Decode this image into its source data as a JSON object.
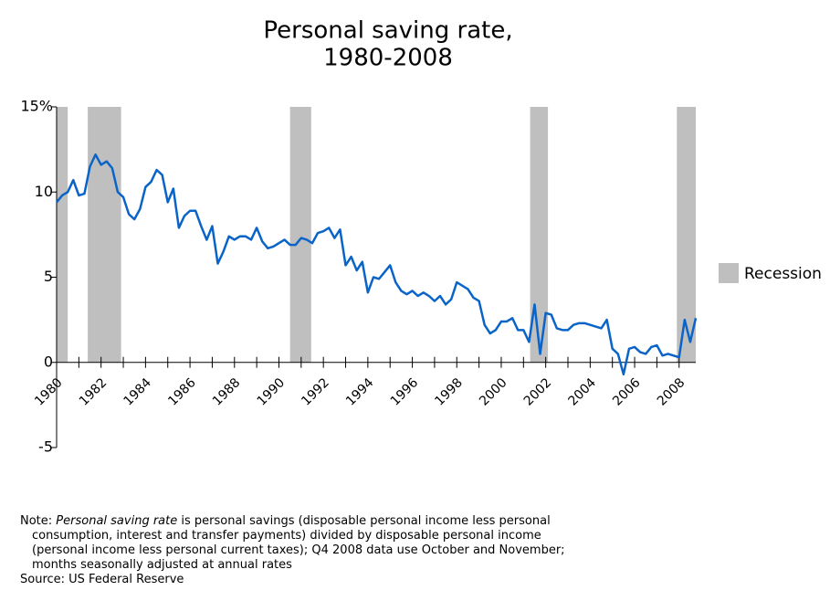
{
  "chart_data": {
    "type": "line",
    "title": [
      "Personal saving rate,",
      "1980-2008"
    ],
    "x": [
      1980,
      1980.25,
      1980.5,
      1980.75,
      1981,
      1981.25,
      1981.5,
      1981.75,
      1982,
      1982.25,
      1982.5,
      1982.75,
      1983,
      1983.25,
      1983.5,
      1983.75,
      1984,
      1984.25,
      1984.5,
      1984.75,
      1985,
      1985.25,
      1985.5,
      1985.75,
      1986,
      1986.25,
      1986.5,
      1986.75,
      1987,
      1987.25,
      1987.5,
      1987.75,
      1988,
      1988.25,
      1988.5,
      1988.75,
      1989,
      1989.25,
      1989.5,
      1989.75,
      1990,
      1990.25,
      1990.5,
      1990.75,
      1991,
      1991.25,
      1991.5,
      1991.75,
      1992,
      1992.25,
      1992.5,
      1992.75,
      1993,
      1993.25,
      1993.5,
      1993.75,
      1994,
      1994.25,
      1994.5,
      1994.75,
      1995,
      1995.25,
      1995.5,
      1995.75,
      1996,
      1996.25,
      1996.5,
      1996.75,
      1997,
      1997.25,
      1997.5,
      1997.75,
      1998,
      1998.25,
      1998.5,
      1998.75,
      1999,
      1999.25,
      1999.5,
      1999.75,
      2000,
      2000.25,
      2000.5,
      2000.75,
      2001,
      2001.25,
      2001.5,
      2001.75,
      2002,
      2002.25,
      2002.5,
      2002.75,
      2003,
      2003.25,
      2003.5,
      2003.75,
      2004,
      2004.25,
      2004.5,
      2004.75,
      2005,
      2005.25,
      2005.5,
      2005.75,
      2006,
      2006.25,
      2006.5,
      2006.75,
      2007,
      2007.25,
      2007.5,
      2007.75,
      2008,
      2008.25,
      2008.5,
      2008.75
    ],
    "series": [
      {
        "name": "Personal saving rate",
        "color": "#0a64c8",
        "values": [
          9.4,
          9.8,
          10.0,
          10.7,
          9.8,
          9.9,
          11.5,
          12.2,
          11.6,
          11.8,
          11.4,
          10.0,
          9.7,
          8.7,
          8.4,
          9.0,
          10.3,
          10.6,
          11.3,
          11.0,
          9.4,
          10.2,
          7.9,
          8.6,
          8.9,
          8.9,
          8.0,
          7.2,
          8.0,
          5.8,
          6.5,
          7.4,
          7.2,
          7.4,
          7.4,
          7.2,
          7.9,
          7.1,
          6.7,
          6.8,
          7.0,
          7.2,
          6.9,
          6.9,
          7.3,
          7.2,
          7.0,
          7.6,
          7.7,
          7.9,
          7.3,
          7.8,
          5.7,
          6.2,
          5.4,
          5.9,
          4.1,
          5.0,
          4.9,
          5.3,
          5.7,
          4.7,
          4.2,
          4.0,
          4.2,
          3.9,
          4.1,
          3.9,
          3.6,
          3.9,
          3.4,
          3.7,
          4.7,
          4.5,
          4.3,
          3.8,
          3.6,
          2.2,
          1.7,
          1.9,
          2.4,
          2.4,
          2.6,
          1.9,
          1.9,
          1.2,
          3.4,
          0.5,
          2.9,
          2.8,
          2.0,
          1.9,
          1.9,
          2.2,
          2.3,
          2.3,
          2.2,
          2.1,
          2.0,
          2.5,
          0.8,
          0.5,
          -0.7,
          0.8,
          0.9,
          0.6,
          0.5,
          0.9,
          1.0,
          0.4,
          0.5,
          0.4,
          0.3,
          2.5,
          1.2,
          2.6
        ]
      }
    ],
    "recession_label": "Recession",
    "recession_color": "#bfbfbf",
    "recessions": [
      [
        1980,
        1980.5
      ],
      [
        1981.4,
        1982.9
      ],
      [
        1990.5,
        1991.45
      ],
      [
        2001.3,
        2002.1
      ],
      [
        2007.9,
        2008.75
      ]
    ],
    "xlim": [
      1980,
      2008.75
    ],
    "xticks": [
      1980,
      1982,
      1984,
      1986,
      1988,
      1990,
      1992,
      1994,
      1996,
      1998,
      2000,
      2002,
      2004,
      2006,
      2008
    ],
    "minor_xticks": [
      1981,
      1983,
      1985,
      1987,
      1989,
      1991,
      1993,
      1995,
      1997,
      1999,
      2001,
      2003,
      2005,
      2007
    ],
    "ylim": [
      -5,
      15
    ],
    "yticks": [
      {
        "value": 15,
        "label": "15%"
      },
      10,
      5,
      0,
      -5
    ],
    "legend": "right",
    "note": [
      "Note: ",
      "Personal saving rate",
      " is personal savings (disposable personal income less personal"
    ],
    "note_lines": [
      "consumption, interest and transfer payments) divided by disposable personal income",
      "(personal income less personal current taxes); Q4 2008 data use October and November;",
      "months seasonally adjusted at annual rates"
    ],
    "source": "Source: US Federal Reserve"
  }
}
